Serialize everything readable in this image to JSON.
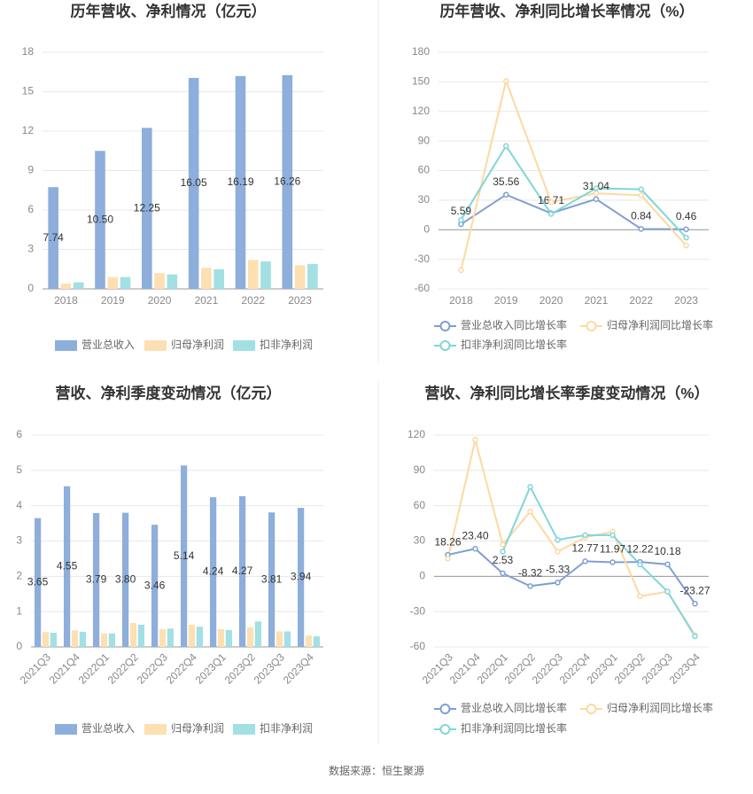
{
  "chart_data": [
    {
      "type": "bar",
      "title": "历年营收、净利情况（亿元）",
      "categories": [
        "2018",
        "2019",
        "2020",
        "2021",
        "2022",
        "2023"
      ],
      "series": [
        {
          "name": "营业总收入",
          "color": "#8eaedb",
          "values": [
            7.74,
            10.5,
            12.25,
            16.05,
            16.19,
            16.26
          ],
          "value_labels": [
            "7.74",
            "10.50",
            "12.25",
            "16.05",
            "16.19",
            "16.26"
          ]
        },
        {
          "name": "归母净利润",
          "color": "#fde0b2",
          "values": [
            0.4,
            0.9,
            1.2,
            1.6,
            2.2,
            1.8
          ]
        },
        {
          "name": "扣非净利润",
          "color": "#a2e0e3",
          "values": [
            0.5,
            0.9,
            1.1,
            1.5,
            2.1,
            1.9
          ]
        }
      ],
      "ylim": [
        0,
        18
      ],
      "yticks": [
        0,
        3,
        6,
        9,
        12,
        15,
        18
      ],
      "grid": true,
      "legend": "bottom"
    },
    {
      "type": "line",
      "title": "历年营收、净利同比增长率情况（%）",
      "categories": [
        "2018",
        "2019",
        "2020",
        "2021",
        "2022",
        "2023"
      ],
      "series": [
        {
          "name": "营业总收入同比增长率",
          "color": "#7f9fd3",
          "values": [
            5.59,
            35.56,
            16.71,
            31.04,
            0.84,
            0.46
          ]
        },
        {
          "name": "归母净利润同比增长率",
          "color": "#fdd9a0",
          "values": [
            -41,
            151,
            28,
            37,
            35,
            -16
          ]
        },
        {
          "name": "扣非净利润同比增长率",
          "color": "#80d6d9",
          "values": [
            10,
            85,
            16,
            42,
            41,
            -8
          ]
        }
      ],
      "ylim": [
        -60,
        180
      ],
      "yticks": [
        -60,
        -30,
        0,
        30,
        60,
        90,
        120,
        150,
        180
      ],
      "grid": true,
      "legend": "bottom"
    },
    {
      "type": "bar",
      "title": "营收、净利季度变动情况（亿元）",
      "categories": [
        "2021Q3",
        "2021Q4",
        "2022Q1",
        "2022Q2",
        "2022Q3",
        "2022Q4",
        "2023Q1",
        "2023Q2",
        "2023Q3",
        "2023Q4"
      ],
      "series": [
        {
          "name": "营业总收入",
          "color": "#8eaedb",
          "values": [
            3.65,
            4.55,
            3.79,
            3.8,
            3.46,
            5.14,
            4.24,
            4.27,
            3.81,
            3.94
          ],
          "value_labels": [
            "3.65",
            "4.55",
            "3.79",
            "3.80",
            "3.46",
            "5.14",
            "4.24",
            "4.27",
            "3.81",
            "3.94"
          ]
        },
        {
          "name": "归母净利润",
          "color": "#fde0b2",
          "values": [
            0.42,
            0.47,
            0.38,
            0.68,
            0.5,
            0.63,
            0.5,
            0.55,
            0.44,
            0.32
          ]
        },
        {
          "name": "扣非净利润",
          "color": "#a2e0e3",
          "values": [
            0.4,
            0.43,
            0.38,
            0.63,
            0.52,
            0.57,
            0.48,
            0.72,
            0.44,
            0.3
          ]
        }
      ],
      "ylim": [
        0,
        6
      ],
      "yticks": [
        0,
        1,
        2,
        3,
        4,
        5,
        6
      ],
      "grid": true,
      "legend": "bottom"
    },
    {
      "type": "line",
      "title": "营收、净利同比增长率季度变动情况（%）",
      "categories": [
        "2021Q3",
        "2021Q4",
        "2022Q1",
        "2022Q2",
        "2022Q3",
        "2022Q4",
        "2023Q1",
        "2023Q2",
        "2023Q3",
        "2023Q4"
      ],
      "series": [
        {
          "name": "营业总收入同比增长率",
          "color": "#7f9fd3",
          "values": [
            18.26,
            23.4,
            2.53,
            -8.32,
            -5.33,
            12.77,
            11.97,
            12.22,
            10.18,
            -23.27
          ],
          "value_labels": [
            "18.26",
            "23.40",
            "2.53",
            "-8.32",
            "-5.33",
            "12.77",
            "11.97",
            "12.22",
            "10.18",
            "-23.27"
          ]
        },
        {
          "name": "归母净利润同比增长率",
          "color": "#fdd9a0",
          "values": [
            15,
            116,
            27,
            55,
            21,
            33,
            38,
            -17,
            -13,
            -50
          ]
        },
        {
          "name": "扣非净利润同比增长率",
          "color": "#80d6d9",
          "values": [
            null,
            null,
            21,
            76,
            31,
            35,
            35,
            10,
            -13,
            -51
          ]
        }
      ],
      "ylim": [
        -60,
        120
      ],
      "yticks": [
        -60,
        -30,
        0,
        30,
        60,
        90,
        120
      ],
      "grid": true,
      "legend": "bottom"
    }
  ],
  "source": "数据来源：恒生聚源"
}
